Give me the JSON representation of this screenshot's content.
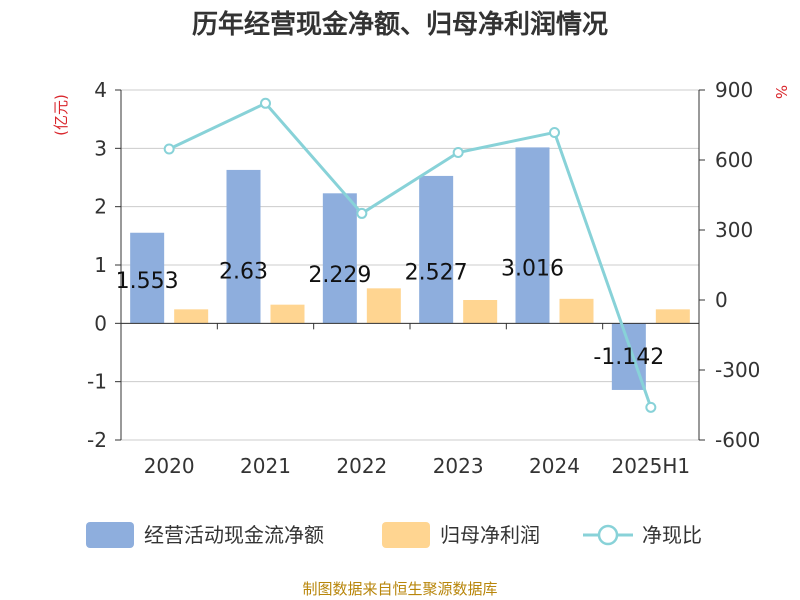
{
  "chart_data": {
    "type": "bar",
    "title": "历年经营现金净额、归母净利润情况",
    "categories": [
      "2020",
      "2021",
      "2022",
      "2023",
      "2024",
      "2025H1"
    ],
    "series": [
      {
        "name": "经营活动现金流净额",
        "type": "bar",
        "axis": "left",
        "color": "#8eaedd",
        "values": [
          1.553,
          2.63,
          2.229,
          2.527,
          3.016,
          -1.142
        ],
        "labels": [
          "1.553",
          "2.63",
          "2.229",
          "2.527",
          "3.016",
          "-1.142"
        ]
      },
      {
        "name": "归母净利润",
        "type": "bar",
        "axis": "left",
        "color": "#ffd591",
        "values": [
          0.24,
          0.32,
          0.6,
          0.4,
          0.42,
          0.24
        ]
      },
      {
        "name": "净现比",
        "type": "line",
        "axis": "right",
        "color": "#88d2d8",
        "values": [
          647,
          843,
          371,
          632,
          718,
          -460
        ]
      }
    ],
    "y_left": {
      "unit": "(亿元)",
      "min": -2,
      "max": 4,
      "ticks": [
        "-2",
        "-1",
        "0",
        "1",
        "2",
        "3",
        "4"
      ]
    },
    "y_right": {
      "unit": "%",
      "min": -600,
      "max": 900,
      "ticks": [
        "-600",
        "-300",
        "0",
        "300",
        "600",
        "900"
      ]
    },
    "grid": true,
    "legend_position": "bottom",
    "source": "制图数据来自恒生聚源数据库"
  }
}
